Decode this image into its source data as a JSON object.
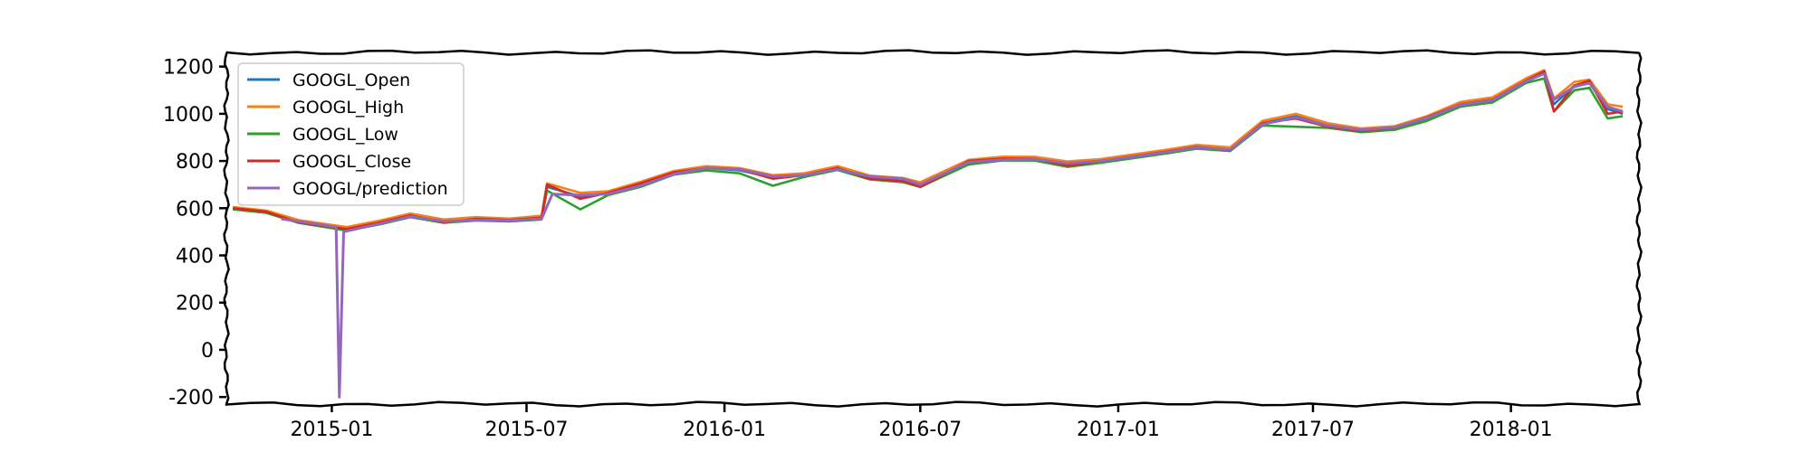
{
  "chart_data": {
    "type": "line",
    "title": "",
    "xlabel": "",
    "ylabel": "",
    "ylim": [
      -230,
      1260
    ],
    "xlim": [
      "2014-09-25",
      "2018-04-30"
    ],
    "grid": false,
    "legend_position": "top-left",
    "x_ticks": [
      {
        "date": "2015-01-01",
        "label": "2015-01"
      },
      {
        "date": "2015-07-01",
        "label": "2015-07"
      },
      {
        "date": "2016-01-01",
        "label": "2016-01"
      },
      {
        "date": "2016-07-01",
        "label": "2016-07"
      },
      {
        "date": "2017-01-01",
        "label": "2017-01"
      },
      {
        "date": "2017-07-01",
        "label": "2017-07"
      },
      {
        "date": "2018-01-01",
        "label": "2018-01"
      }
    ],
    "y_ticks": [
      {
        "value": 1200,
        "label": "1200"
      },
      {
        "value": 1000,
        "label": "1000"
      },
      {
        "value": 800,
        "label": "800"
      },
      {
        "value": 600,
        "label": "600"
      },
      {
        "value": 400,
        "label": "400"
      },
      {
        "value": 200,
        "label": "200"
      },
      {
        "value": 0,
        "label": "0"
      },
      {
        "value": -200,
        "label": "-200"
      }
    ],
    "series": [
      {
        "name": "GOOGL_Open",
        "color": "#1f77b4",
        "points": [
          [
            "2014-10-01",
            600
          ],
          [
            "2014-11-01",
            585
          ],
          [
            "2014-12-01",
            545
          ],
          [
            "2015-01-15",
            510
          ],
          [
            "2015-02-15",
            540
          ],
          [
            "2015-03-15",
            570
          ],
          [
            "2015-04-15",
            545
          ],
          [
            "2015-05-15",
            555
          ],
          [
            "2015-06-15",
            550
          ],
          [
            "2015-07-15",
            560
          ],
          [
            "2015-07-20",
            690
          ],
          [
            "2015-08-20",
            650
          ],
          [
            "2015-09-15",
            665
          ],
          [
            "2015-10-15",
            700
          ],
          [
            "2015-11-15",
            750
          ],
          [
            "2015-12-15",
            770
          ],
          [
            "2016-01-15",
            760
          ],
          [
            "2016-02-15",
            730
          ],
          [
            "2016-03-15",
            740
          ],
          [
            "2016-04-15",
            770
          ],
          [
            "2016-05-15",
            730
          ],
          [
            "2016-06-15",
            720
          ],
          [
            "2016-07-01",
            700
          ],
          [
            "2016-08-15",
            795
          ],
          [
            "2016-09-15",
            810
          ],
          [
            "2016-10-15",
            810
          ],
          [
            "2016-11-15",
            790
          ],
          [
            "2016-12-15",
            800
          ],
          [
            "2017-01-15",
            820
          ],
          [
            "2017-02-15",
            840
          ],
          [
            "2017-03-15",
            860
          ],
          [
            "2017-04-15",
            850
          ],
          [
            "2017-05-15",
            960
          ],
          [
            "2017-06-15",
            990
          ],
          [
            "2017-07-15",
            950
          ],
          [
            "2017-08-15",
            930
          ],
          [
            "2017-09-15",
            940
          ],
          [
            "2017-10-15",
            980
          ],
          [
            "2017-11-15",
            1040
          ],
          [
            "2017-12-15",
            1060
          ],
          [
            "2018-01-15",
            1140
          ],
          [
            "2018-02-01",
            1170
          ],
          [
            "2018-02-10",
            1040
          ],
          [
            "2018-03-01",
            1120
          ],
          [
            "2018-03-15",
            1130
          ],
          [
            "2018-04-01",
            1020
          ],
          [
            "2018-04-15",
            1000
          ]
        ]
      },
      {
        "name": "GOOGL_High",
        "color": "#ff7f0e",
        "points": [
          [
            "2014-10-01",
            605
          ],
          [
            "2014-11-01",
            590
          ],
          [
            "2014-12-01",
            550
          ],
          [
            "2015-01-15",
            520
          ],
          [
            "2015-02-15",
            548
          ],
          [
            "2015-03-15",
            578
          ],
          [
            "2015-04-15",
            552
          ],
          [
            "2015-05-15",
            562
          ],
          [
            "2015-06-15",
            556
          ],
          [
            "2015-07-15",
            568
          ],
          [
            "2015-07-20",
            705
          ],
          [
            "2015-08-20",
            665
          ],
          [
            "2015-09-15",
            672
          ],
          [
            "2015-10-15",
            712
          ],
          [
            "2015-11-15",
            758
          ],
          [
            "2015-12-15",
            778
          ],
          [
            "2016-01-15",
            770
          ],
          [
            "2016-02-15",
            740
          ],
          [
            "2016-03-15",
            748
          ],
          [
            "2016-04-15",
            778
          ],
          [
            "2016-05-15",
            738
          ],
          [
            "2016-06-15",
            728
          ],
          [
            "2016-07-01",
            710
          ],
          [
            "2016-08-15",
            805
          ],
          [
            "2016-09-15",
            818
          ],
          [
            "2016-10-15",
            818
          ],
          [
            "2016-11-15",
            798
          ],
          [
            "2016-12-15",
            808
          ],
          [
            "2017-01-15",
            828
          ],
          [
            "2017-02-15",
            848
          ],
          [
            "2017-03-15",
            868
          ],
          [
            "2017-04-15",
            858
          ],
          [
            "2017-05-15",
            970
          ],
          [
            "2017-06-15",
            1000
          ],
          [
            "2017-07-15",
            960
          ],
          [
            "2017-08-15",
            938
          ],
          [
            "2017-09-15",
            948
          ],
          [
            "2017-10-15",
            990
          ],
          [
            "2017-11-15",
            1050
          ],
          [
            "2017-12-15",
            1070
          ],
          [
            "2018-01-15",
            1150
          ],
          [
            "2018-02-01",
            1185
          ],
          [
            "2018-02-10",
            1065
          ],
          [
            "2018-03-01",
            1135
          ],
          [
            "2018-03-15",
            1145
          ],
          [
            "2018-04-01",
            1040
          ],
          [
            "2018-04-15",
            1030
          ]
        ]
      },
      {
        "name": "GOOGL_Low",
        "color": "#2ca02c",
        "points": [
          [
            "2014-10-01",
            595
          ],
          [
            "2014-11-01",
            580
          ],
          [
            "2014-12-01",
            538
          ],
          [
            "2015-01-15",
            505
          ],
          [
            "2015-02-15",
            532
          ],
          [
            "2015-03-15",
            562
          ],
          [
            "2015-04-15",
            538
          ],
          [
            "2015-05-15",
            548
          ],
          [
            "2015-06-15",
            544
          ],
          [
            "2015-07-15",
            552
          ],
          [
            "2015-07-20",
            675
          ],
          [
            "2015-08-20",
            595
          ],
          [
            "2015-09-15",
            656
          ],
          [
            "2015-10-15",
            690
          ],
          [
            "2015-11-15",
            742
          ],
          [
            "2015-12-15",
            760
          ],
          [
            "2016-01-15",
            748
          ],
          [
            "2016-02-15",
            695
          ],
          [
            "2016-03-15",
            732
          ],
          [
            "2016-04-15",
            762
          ],
          [
            "2016-05-15",
            722
          ],
          [
            "2016-06-15",
            710
          ],
          [
            "2016-07-01",
            690
          ],
          [
            "2016-08-15",
            785
          ],
          [
            "2016-09-15",
            802
          ],
          [
            "2016-10-15",
            802
          ],
          [
            "2016-11-15",
            775
          ],
          [
            "2016-12-15",
            792
          ],
          [
            "2017-01-15",
            812
          ],
          [
            "2017-02-15",
            832
          ],
          [
            "2017-03-15",
            852
          ],
          [
            "2017-04-15",
            842
          ],
          [
            "2017-05-15",
            950
          ],
          [
            "2017-06-15",
            945
          ],
          [
            "2017-07-15",
            940
          ],
          [
            "2017-08-15",
            922
          ],
          [
            "2017-09-15",
            932
          ],
          [
            "2017-10-15",
            970
          ],
          [
            "2017-11-15",
            1030
          ],
          [
            "2017-12-15",
            1048
          ],
          [
            "2018-01-15",
            1130
          ],
          [
            "2018-02-01",
            1150
          ],
          [
            "2018-02-10",
            1010
          ],
          [
            "2018-03-01",
            1100
          ],
          [
            "2018-03-15",
            1110
          ],
          [
            "2018-04-01",
            980
          ],
          [
            "2018-04-15",
            990
          ]
        ]
      },
      {
        "name": "GOOGL_Close",
        "color": "#d62728",
        "points": [
          [
            "2014-10-01",
            600
          ],
          [
            "2014-11-01",
            585
          ],
          [
            "2014-12-01",
            540
          ],
          [
            "2015-01-15",
            512
          ],
          [
            "2015-02-15",
            540
          ],
          [
            "2015-03-15",
            570
          ],
          [
            "2015-04-15",
            540
          ],
          [
            "2015-05-15",
            555
          ],
          [
            "2015-06-15",
            550
          ],
          [
            "2015-07-15",
            560
          ],
          [
            "2015-07-20",
            700
          ],
          [
            "2015-08-20",
            640
          ],
          [
            "2015-09-15",
            665
          ],
          [
            "2015-10-15",
            705
          ],
          [
            "2015-11-15",
            752
          ],
          [
            "2015-12-15",
            770
          ],
          [
            "2016-01-15",
            765
          ],
          [
            "2016-02-15",
            725
          ],
          [
            "2016-03-15",
            740
          ],
          [
            "2016-04-15",
            770
          ],
          [
            "2016-05-15",
            725
          ],
          [
            "2016-06-15",
            715
          ],
          [
            "2016-07-01",
            690
          ],
          [
            "2016-08-15",
            800
          ],
          [
            "2016-09-15",
            810
          ],
          [
            "2016-10-15",
            810
          ],
          [
            "2016-11-15",
            780
          ],
          [
            "2016-12-15",
            800
          ],
          [
            "2017-01-15",
            820
          ],
          [
            "2017-02-15",
            840
          ],
          [
            "2017-03-15",
            860
          ],
          [
            "2017-04-15",
            845
          ],
          [
            "2017-05-15",
            960
          ],
          [
            "2017-06-15",
            980
          ],
          [
            "2017-07-15",
            945
          ],
          [
            "2017-08-15",
            928
          ],
          [
            "2017-09-15",
            940
          ],
          [
            "2017-10-15",
            985
          ],
          [
            "2017-11-15",
            1040
          ],
          [
            "2017-12-15",
            1060
          ],
          [
            "2018-01-15",
            1140
          ],
          [
            "2018-02-01",
            1180
          ],
          [
            "2018-02-10",
            1010
          ],
          [
            "2018-03-01",
            1120
          ],
          [
            "2018-03-15",
            1140
          ],
          [
            "2018-04-01",
            1000
          ],
          [
            "2018-04-15",
            1010
          ]
        ]
      },
      {
        "name": "GOOGL/prediction",
        "color": "#9467bd",
        "points": [
          [
            "2014-11-15",
            555
          ],
          [
            "2014-12-15",
            535
          ],
          [
            "2015-01-05",
            520
          ],
          [
            "2015-01-08",
            -200
          ],
          [
            "2015-01-12",
            500
          ],
          [
            "2015-02-15",
            535
          ],
          [
            "2015-03-15",
            565
          ],
          [
            "2015-04-15",
            545
          ],
          [
            "2015-05-15",
            550
          ],
          [
            "2015-06-15",
            548
          ],
          [
            "2015-07-15",
            555
          ],
          [
            "2015-07-25",
            660
          ],
          [
            "2015-08-20",
            655
          ],
          [
            "2015-09-15",
            660
          ],
          [
            "2015-10-15",
            695
          ],
          [
            "2015-11-15",
            745
          ],
          [
            "2015-12-15",
            770
          ],
          [
            "2016-01-15",
            765
          ],
          [
            "2016-02-15",
            735
          ],
          [
            "2016-03-15",
            740
          ],
          [
            "2016-04-15",
            765
          ],
          [
            "2016-05-15",
            735
          ],
          [
            "2016-06-15",
            725
          ],
          [
            "2016-07-01",
            700
          ],
          [
            "2016-08-15",
            795
          ],
          [
            "2016-09-15",
            805
          ],
          [
            "2016-10-15",
            808
          ],
          [
            "2016-11-15",
            790
          ],
          [
            "2016-12-15",
            800
          ],
          [
            "2017-01-15",
            818
          ],
          [
            "2017-02-15",
            838
          ],
          [
            "2017-03-15",
            858
          ],
          [
            "2017-04-15",
            848
          ],
          [
            "2017-05-15",
            955
          ],
          [
            "2017-06-15",
            985
          ],
          [
            "2017-07-15",
            950
          ],
          [
            "2017-08-15",
            932
          ],
          [
            "2017-09-15",
            942
          ],
          [
            "2017-10-15",
            982
          ],
          [
            "2017-11-15",
            1038
          ],
          [
            "2017-12-15",
            1058
          ],
          [
            "2018-01-15",
            1138
          ],
          [
            "2018-02-01",
            1170
          ],
          [
            "2018-02-10",
            1060
          ],
          [
            "2018-03-01",
            1115
          ],
          [
            "2018-03-15",
            1130
          ],
          [
            "2018-04-01",
            1030
          ],
          [
            "2018-04-15",
            1010
          ]
        ]
      }
    ]
  }
}
